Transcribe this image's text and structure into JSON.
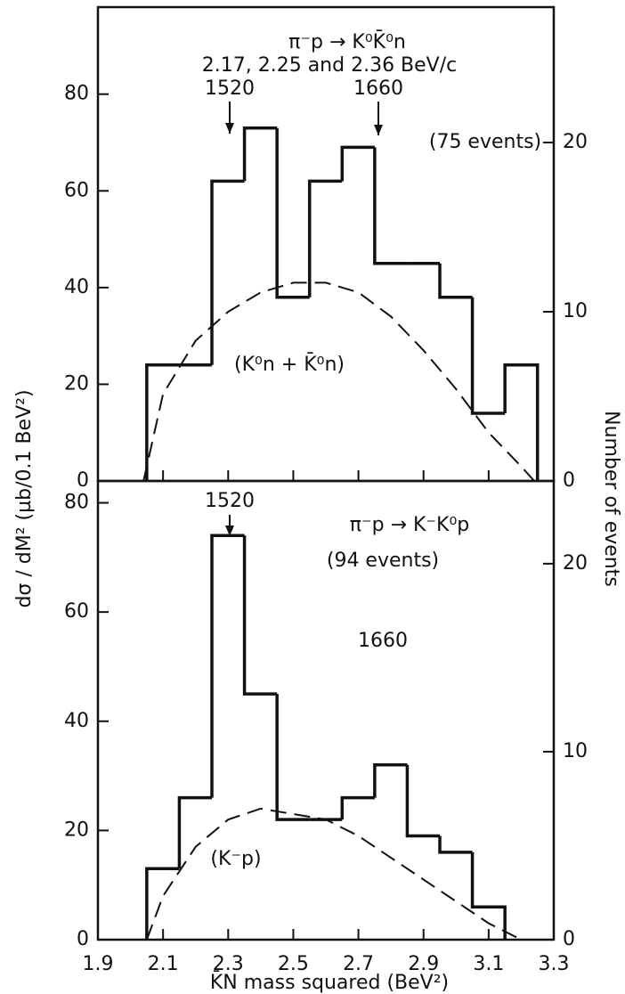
{
  "chart_data": [
    {
      "type": "histogram",
      "ylabel": "dσ / dM² (µb/0.1 BeV²)",
      "y2label": "Number of events",
      "annotations": [
        "π⁻p → K⁰K̄⁰n",
        "2.17, 2.25 and 2.36 BeV/c",
        "1520",
        "1660",
        "(75 events)",
        "(K⁰n + K̄⁰n)"
      ],
      "bins": [
        2.05,
        2.15,
        2.25,
        2.35,
        2.45,
        2.55,
        2.65,
        2.75,
        2.85,
        2.95,
        3.05,
        3.15,
        3.25
      ],
      "values": [
        24,
        24,
        62,
        73,
        38,
        62,
        69,
        45,
        45,
        38,
        14,
        24
      ],
      "color": "#111111",
      "curve": {
        "x": [
          2.04,
          2.1,
          2.2,
          2.3,
          2.4,
          2.5,
          2.6,
          2.7,
          2.8,
          2.9,
          3.0,
          3.1,
          3.2,
          3.24
        ],
        "values": [
          0,
          18,
          29,
          35,
          39,
          41,
          41,
          39,
          34,
          27,
          19,
          10,
          3,
          0
        ],
        "dashed": true
      },
      "xlim": [
        1.9,
        3.3
      ],
      "ylim": [
        0,
        98
      ],
      "yticks": [
        0,
        20,
        40,
        60,
        80
      ],
      "y2lim": [
        0,
        28
      ],
      "y2ticks": [
        0,
        10,
        20
      ]
    },
    {
      "type": "histogram",
      "xlabel": "K̄N  mass squared   (BeV²)",
      "annotations": [
        "1520",
        "π⁻p → K⁻K⁰p",
        "(94 events)",
        "1660",
        "(K⁻p)"
      ],
      "bins": [
        2.05,
        2.15,
        2.25,
        2.35,
        2.45,
        2.55,
        2.65,
        2.75,
        2.85,
        2.95,
        3.05,
        3.15
      ],
      "values": [
        13,
        26,
        74,
        45,
        22,
        22,
        26,
        32,
        19,
        16,
        6
      ],
      "color": "#111111",
      "curve": {
        "x": [
          2.05,
          2.1,
          2.2,
          2.3,
          2.4,
          2.5,
          2.6,
          2.7,
          2.8,
          2.9,
          3.0,
          3.1,
          3.2
        ],
        "values": [
          0,
          8,
          17,
          22,
          24,
          23,
          22,
          19,
          15,
          11,
          7,
          3,
          0
        ],
        "dashed": true
      },
      "xlim": [
        1.9,
        3.3
      ],
      "xticks": [
        1.9,
        2.1,
        2.3,
        2.5,
        2.7,
        2.9,
        3.1,
        3.3
      ],
      "ylim": [
        0,
        84
      ],
      "yticks": [
        0,
        20,
        40,
        60,
        80
      ],
      "y2lim": [
        0,
        24.4
      ],
      "y2ticks": [
        0,
        10,
        20
      ]
    }
  ]
}
